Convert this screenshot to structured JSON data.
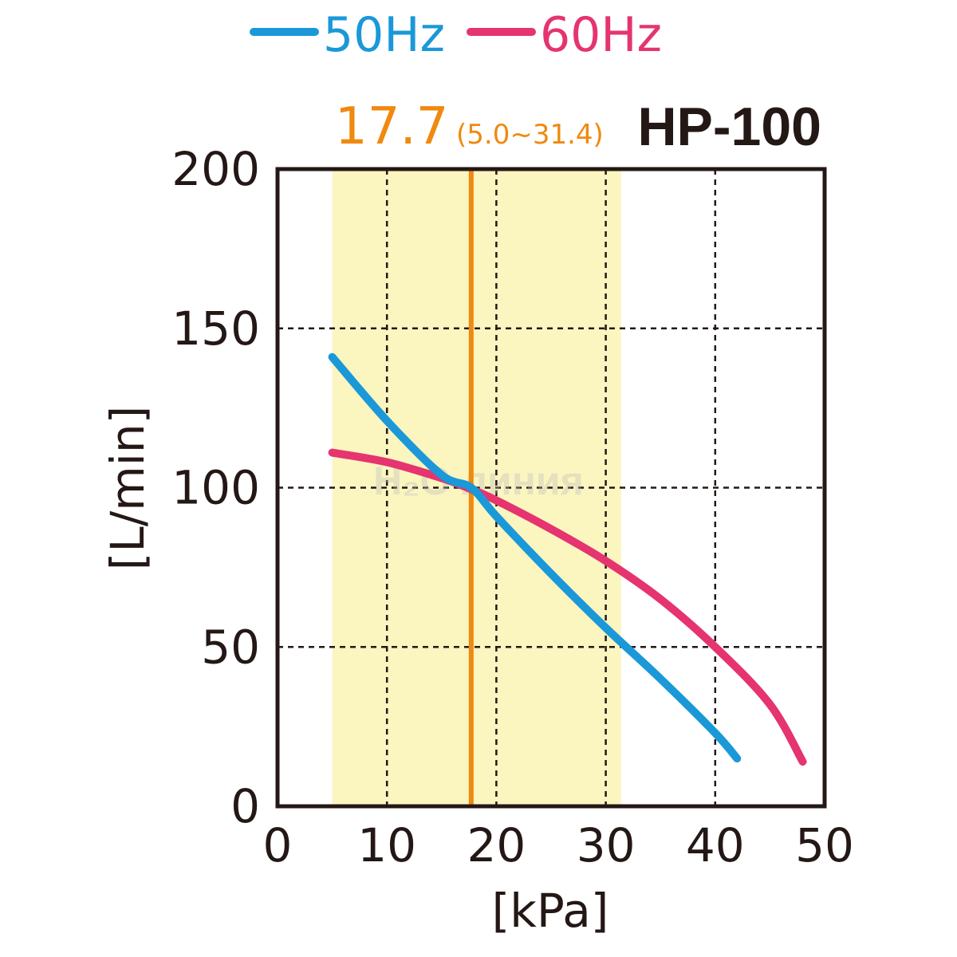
{
  "chart_data": {
    "type": "line",
    "title": "HP-100",
    "xlabel": "[kPa]",
    "ylabel": "[L/min]",
    "xlim": [
      0,
      50
    ],
    "ylim": [
      0,
      200
    ],
    "x_ticks": [
      0,
      10,
      20,
      30,
      40,
      50
    ],
    "y_ticks": [
      0,
      50,
      100,
      150,
      200
    ],
    "x_tick_labels": [
      "0",
      "10",
      "20",
      "30",
      "40",
      "50"
    ],
    "y_tick_labels": [
      "0",
      "50",
      "100",
      "150",
      "200"
    ],
    "grid": true,
    "legend_position": "top",
    "rated_pressure": {
      "value": 17.7,
      "label": "17.7",
      "range": [
        5.0,
        31.4
      ],
      "range_label": "(5.0~31.4)",
      "color": "#f0890f",
      "band_color": "#fbf5c0"
    },
    "series": [
      {
        "name": "50Hz",
        "color": "#1b98d8",
        "x": [
          5,
          10,
          15,
          17.7,
          20,
          25,
          30,
          35,
          40,
          42
        ],
        "y": [
          141,
          121,
          104,
          100,
          91,
          73,
          56,
          40,
          23,
          15
        ]
      },
      {
        "name": "60Hz",
        "color": "#e5346f",
        "x": [
          5,
          10,
          15,
          17.7,
          20,
          25,
          30,
          35,
          40,
          45,
          48
        ],
        "y": [
          111,
          108,
          103,
          99.5,
          96,
          87,
          77,
          65,
          50,
          32,
          14
        ]
      }
    ]
  },
  "watermark": "H₂O линия"
}
